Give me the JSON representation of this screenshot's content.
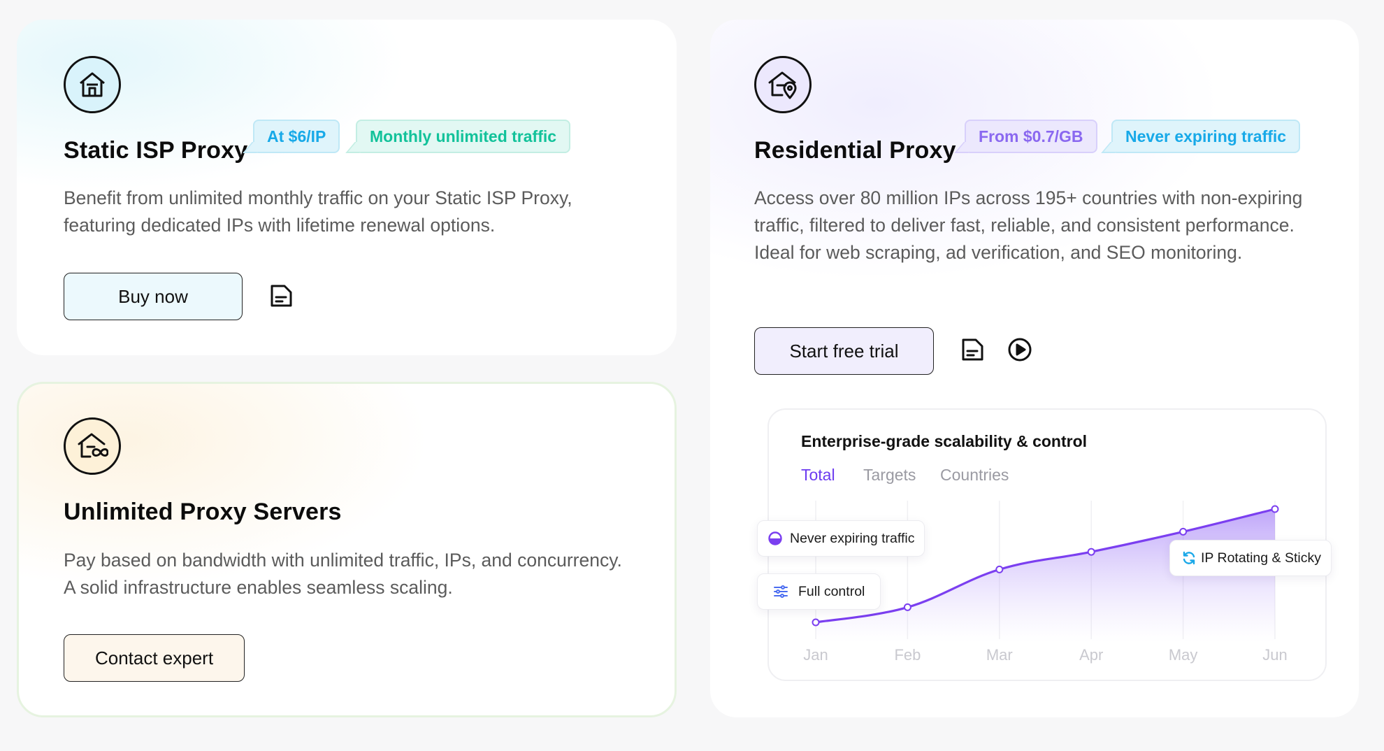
{
  "isp": {
    "title": "Static ISP Proxy",
    "tags": [
      "At $6/IP",
      "Monthly unlimited traffic"
    ],
    "description": "Benefit from unlimited monthly traffic on your Static ISP Proxy, featuring dedicated IPs with lifetime renewal options.",
    "button": "Buy now",
    "icon": "house-icon",
    "accent": "#17a9e8"
  },
  "unlimited": {
    "title": "Unlimited Proxy Servers",
    "description": "Pay based on bandwidth with unlimited traffic, IPs, and concurrency. A solid infrastructure enables seamless scaling.",
    "button": "Contact expert",
    "icon": "house-infinity-icon"
  },
  "residential": {
    "title": "Residential Proxy",
    "tags": [
      "From $0.7/GB",
      "Never expiring traffic"
    ],
    "description": "Access over 80 million IPs across 195+ countries with non-expiring traffic, filtered to deliver fast, reliable, and consistent performance. Ideal for web scraping, ad verification, and SEO monitoring.",
    "button": "Start free trial",
    "icon": "house-location-icon",
    "accent": "#6d3cf0"
  },
  "chart_panel": {
    "title": "Enterprise-grade scalability & control",
    "tabs": [
      "Total",
      "Targets",
      "Countries"
    ],
    "active_tab": "Total",
    "badges": [
      "Never expiring traffic",
      "Full control",
      "IP Rotating & Sticky"
    ]
  },
  "chart_data": {
    "type": "area",
    "categories": [
      "Jan",
      "Feb",
      "Mar",
      "Apr",
      "May",
      "Jun"
    ],
    "series": [
      {
        "values": [
          10,
          22,
          52,
          66,
          82,
          100
        ]
      }
    ],
    "grid": true,
    "color": "#7b3ff0"
  }
}
